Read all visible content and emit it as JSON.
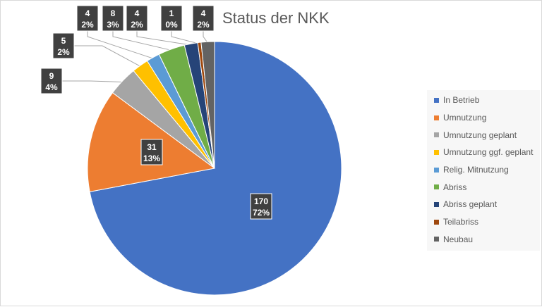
{
  "chart_data": {
    "type": "pie",
    "title": "Status der NKK",
    "legend_position": "right",
    "slices": [
      {
        "name": "In Betrieb",
        "value": 170,
        "percent": "72%",
        "color": "#4472c4"
      },
      {
        "name": "Umnutzung",
        "value": 31,
        "percent": "13%",
        "color": "#ed7d31"
      },
      {
        "name": "Umnutzung geplant",
        "value": 9,
        "percent": "4%",
        "color": "#a5a5a5"
      },
      {
        "name": "Umnutzung ggf. geplant",
        "value": 5,
        "percent": "2%",
        "color": "#ffc000"
      },
      {
        "name": "Relig. Mitnutzung",
        "value": 4,
        "percent": "2%",
        "color": "#5b9bd5"
      },
      {
        "name": "Abriss",
        "value": 8,
        "percent": "3%",
        "color": "#70ad47"
      },
      {
        "name": "Abriss geplant",
        "value": 4,
        "percent": "2%",
        "color": "#264478"
      },
      {
        "name": "Teilabriss",
        "value": 1,
        "percent": "0%",
        "color": "#9e480e"
      },
      {
        "name": "Neubau",
        "value": 4,
        "percent": "2%",
        "color": "#636363"
      }
    ]
  }
}
